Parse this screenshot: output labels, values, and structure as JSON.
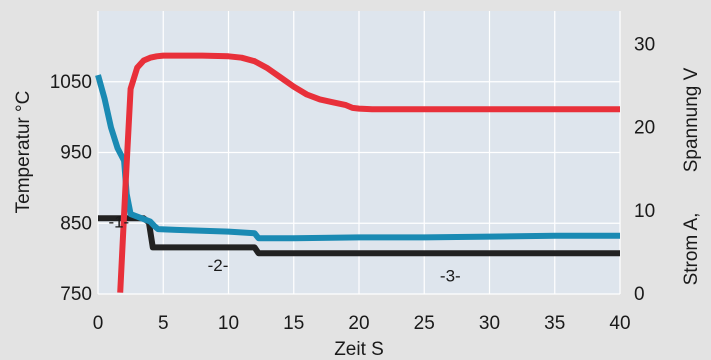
{
  "chart_data": {
    "type": "line",
    "xlabel": "Zeit S",
    "ylabel_left": "Temperatur °C",
    "ylabel_right_parts": [
      "Strom A,",
      "Spannung V"
    ],
    "x_ticks": [
      0,
      5,
      10,
      15,
      20,
      25,
      30,
      35,
      40
    ],
    "y_left_ticks": [
      750,
      850,
      950,
      1050
    ],
    "y_right_ticks": [
      0,
      10,
      20,
      30
    ],
    "xlim": [
      0,
      40
    ],
    "ylim_left": [
      750,
      1150
    ],
    "ylim_right": [
      0,
      34
    ],
    "grid": true,
    "phase_labels": [
      {
        "text": "-1-",
        "x": 0.8,
        "y": 8.7
      },
      {
        "text": "-2-",
        "x": 8.4,
        "y": 3.5
      },
      {
        "text": "-3-",
        "x": 26.2,
        "y": 2.2
      }
    ],
    "series": [
      {
        "axis": "left",
        "color": "#e8303a",
        "x": [
          1.7,
          2.1,
          2.5,
          3.0,
          3.5,
          4.0,
          4.5,
          5.0,
          6.0,
          8.0,
          10.0,
          11.0,
          12.0,
          13.0,
          14.0,
          15.0,
          16.0,
          17.0,
          18.0,
          19.0,
          19.5,
          20.0,
          21.0,
          23.0,
          25.0,
          30.0,
          35.0,
          40.0
        ],
        "values": [
          752,
          900,
          1040,
          1070,
          1080,
          1084,
          1086,
          1087,
          1087,
          1087,
          1086,
          1084,
          1079,
          1069,
          1056,
          1043,
          1032,
          1025,
          1021,
          1017,
          1013,
          1012,
          1011,
          1011,
          1011,
          1011,
          1011,
          1011
        ]
      },
      {
        "axis": "right",
        "color": "#1a8ab3",
        "x": [
          0.0,
          0.5,
          1.0,
          1.5,
          2.0,
          2.2,
          2.5,
          3.0,
          3.5,
          4.0,
          4.3,
          4.6,
          6.0,
          8.0,
          10.0,
          12.0,
          12.3,
          15.0,
          20.0,
          25.0,
          30.0,
          35.0,
          40.0
        ],
        "values": [
          26.3,
          23.5,
          20.0,
          17.5,
          16.0,
          12.0,
          9.6,
          9.3,
          9.0,
          8.7,
          8.2,
          7.8,
          7.7,
          7.6,
          7.5,
          7.3,
          6.7,
          6.7,
          6.8,
          6.8,
          6.9,
          7.0,
          7.0
        ]
      },
      {
        "axis": "right",
        "color": "#222222",
        "x": [
          0.0,
          3.5,
          3.9,
          4.2,
          12.0,
          12.3,
          40.0
        ],
        "values": [
          9.1,
          9.1,
          8.6,
          5.6,
          5.6,
          4.9,
          4.9
        ]
      }
    ]
  }
}
